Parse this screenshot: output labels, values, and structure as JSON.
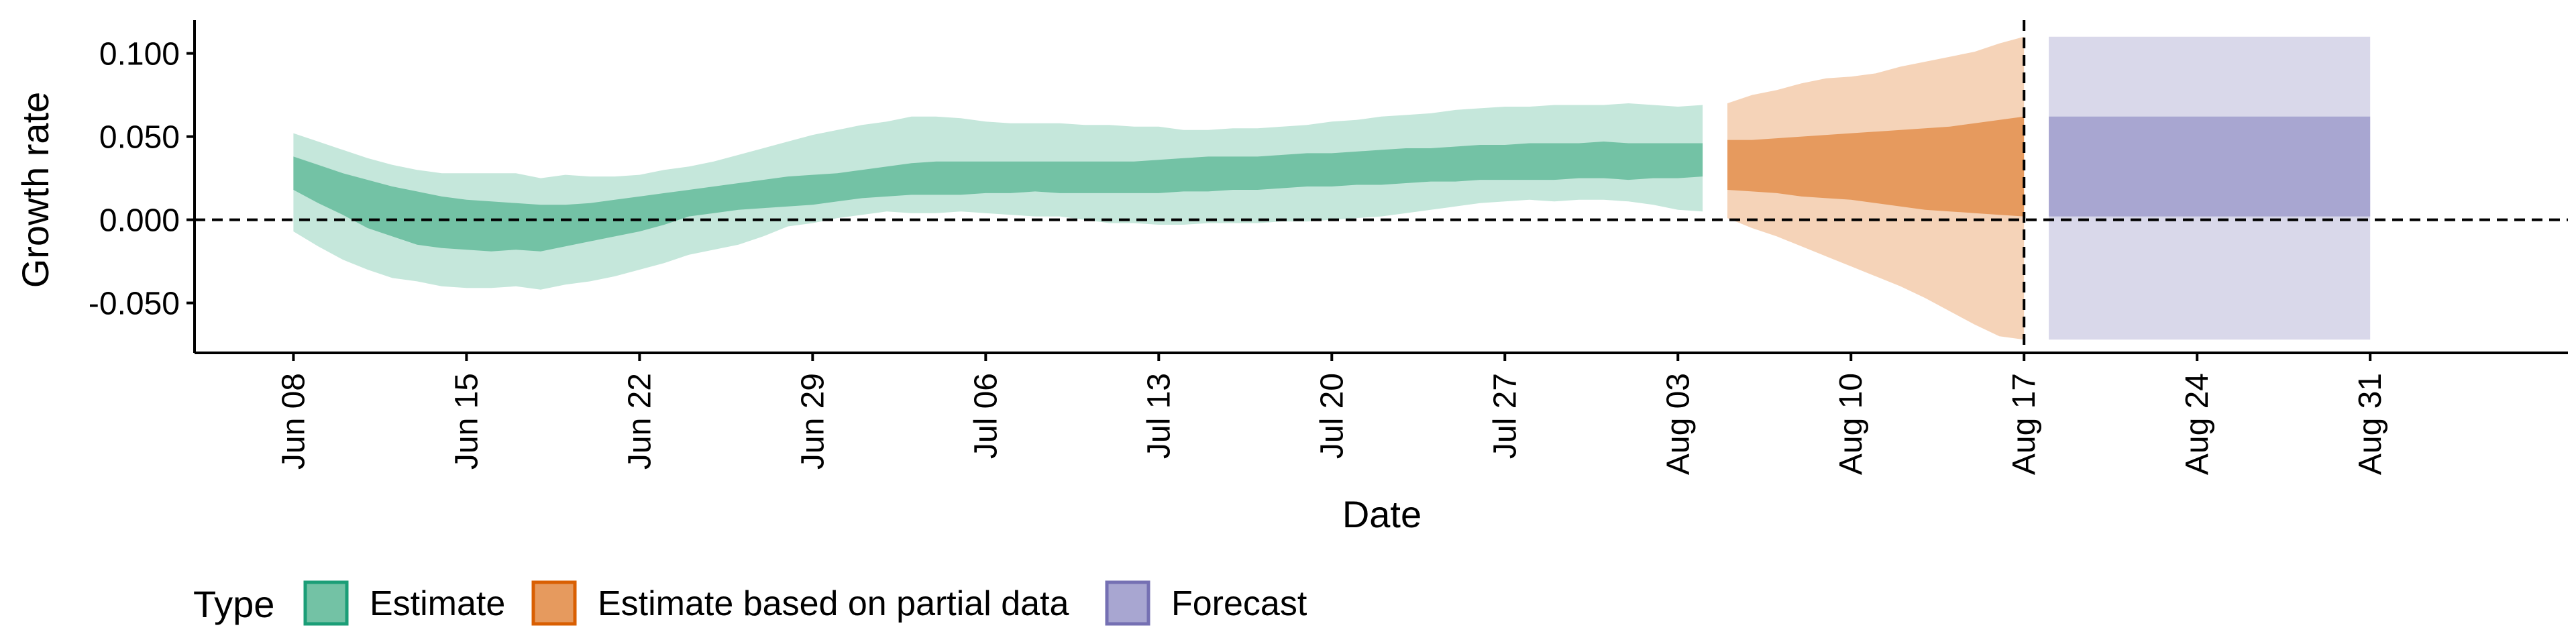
{
  "chart_data": {
    "type": "area",
    "xlabel": "Date",
    "ylabel": "Growth rate",
    "x_ticks": [
      "Jun 08",
      "Jun 15",
      "Jun 22",
      "Jun 29",
      "Jul 06",
      "Jul 13",
      "Jul 20",
      "Jul 27",
      "Aug 03",
      "Aug 10",
      "Aug 17",
      "Aug 24",
      "Aug 31"
    ],
    "y_ticks": [
      "-0.050",
      "0.000",
      "0.050",
      "0.100"
    ],
    "xlim": [
      "2020-06-04",
      "2020-09-08"
    ],
    "ylim": [
      -0.08,
      0.12
    ],
    "hline_y": 0,
    "vline_x": "2020-08-17",
    "grid": false,
    "legend": {
      "title": "Type",
      "position": "bottom-left",
      "entries": [
        {
          "label": "Estimate",
          "fill": "#73c2a5",
          "border": "#1b9e77"
        },
        {
          "label": "Estimate based on partial data",
          "fill": "#e69a5e",
          "border": "#d95f02"
        },
        {
          "label": "Forecast",
          "fill": "#a8a6d1",
          "border": "#7570b3"
        }
      ]
    },
    "series": [
      {
        "name": "Estimate",
        "x": [
          "2020-06-08",
          "2020-06-09",
          "2020-06-10",
          "2020-06-11",
          "2020-06-12",
          "2020-06-13",
          "2020-06-14",
          "2020-06-15",
          "2020-06-16",
          "2020-06-17",
          "2020-06-18",
          "2020-06-19",
          "2020-06-20",
          "2020-06-21",
          "2020-06-22",
          "2020-06-23",
          "2020-06-24",
          "2020-06-25",
          "2020-06-26",
          "2020-06-27",
          "2020-06-28",
          "2020-06-29",
          "2020-06-30",
          "2020-07-01",
          "2020-07-02",
          "2020-07-03",
          "2020-07-04",
          "2020-07-05",
          "2020-07-06",
          "2020-07-07",
          "2020-07-08",
          "2020-07-09",
          "2020-07-10",
          "2020-07-11",
          "2020-07-12",
          "2020-07-13",
          "2020-07-14",
          "2020-07-15",
          "2020-07-16",
          "2020-07-17",
          "2020-07-18",
          "2020-07-19",
          "2020-07-20",
          "2020-07-21",
          "2020-07-22",
          "2020-07-23",
          "2020-07-24",
          "2020-07-25",
          "2020-07-26",
          "2020-07-27",
          "2020-07-28",
          "2020-07-29",
          "2020-07-30",
          "2020-07-31",
          "2020-08-01",
          "2020-08-02",
          "2020-08-03",
          "2020-08-04"
        ],
        "outer_lower": [
          -0.007,
          -0.016,
          -0.024,
          -0.03,
          -0.035,
          -0.037,
          -0.04,
          -0.041,
          -0.041,
          -0.04,
          -0.042,
          -0.039,
          -0.037,
          -0.034,
          -0.03,
          -0.026,
          -0.021,
          -0.018,
          -0.015,
          -0.01,
          -0.004,
          -0.002,
          0.001,
          0.003,
          0.005,
          0.004,
          0.004,
          0.005,
          0.004,
          0.003,
          0.002,
          0.002,
          0.0,
          -0.002,
          -0.002,
          -0.003,
          -0.003,
          -0.002,
          -0.002,
          -0.002,
          -0.001,
          -0.001,
          0.0,
          0.001,
          0.002,
          0.004,
          0.006,
          0.008,
          0.01,
          0.011,
          0.012,
          0.011,
          0.012,
          0.012,
          0.011,
          0.009,
          0.006,
          0.005
        ],
        "outer_upper": [
          0.052,
          0.047,
          0.042,
          0.037,
          0.033,
          0.03,
          0.028,
          0.028,
          0.028,
          0.028,
          0.025,
          0.027,
          0.026,
          0.026,
          0.027,
          0.03,
          0.032,
          0.035,
          0.039,
          0.043,
          0.047,
          0.051,
          0.054,
          0.057,
          0.059,
          0.062,
          0.062,
          0.061,
          0.059,
          0.058,
          0.058,
          0.058,
          0.057,
          0.057,
          0.056,
          0.056,
          0.054,
          0.054,
          0.055,
          0.055,
          0.056,
          0.057,
          0.059,
          0.06,
          0.062,
          0.063,
          0.064,
          0.066,
          0.067,
          0.068,
          0.068,
          0.069,
          0.069,
          0.069,
          0.07,
          0.069,
          0.068,
          0.069
        ],
        "inner_lower": [
          0.018,
          0.01,
          0.003,
          -0.005,
          -0.01,
          -0.015,
          -0.017,
          -0.018,
          -0.019,
          -0.018,
          -0.019,
          -0.016,
          -0.013,
          -0.01,
          -0.007,
          -0.003,
          0.002,
          0.004,
          0.006,
          0.007,
          0.008,
          0.009,
          0.011,
          0.013,
          0.014,
          0.015,
          0.015,
          0.015,
          0.016,
          0.016,
          0.017,
          0.016,
          0.016,
          0.016,
          0.016,
          0.016,
          0.017,
          0.017,
          0.018,
          0.018,
          0.019,
          0.02,
          0.02,
          0.021,
          0.021,
          0.022,
          0.023,
          0.023,
          0.024,
          0.024,
          0.024,
          0.024,
          0.025,
          0.025,
          0.024,
          0.025,
          0.025,
          0.026
        ],
        "inner_upper": [
          0.038,
          0.033,
          0.028,
          0.024,
          0.02,
          0.017,
          0.014,
          0.012,
          0.011,
          0.01,
          0.009,
          0.009,
          0.01,
          0.012,
          0.014,
          0.016,
          0.018,
          0.02,
          0.022,
          0.024,
          0.026,
          0.027,
          0.028,
          0.03,
          0.032,
          0.034,
          0.035,
          0.035,
          0.035,
          0.035,
          0.035,
          0.035,
          0.035,
          0.035,
          0.035,
          0.036,
          0.037,
          0.038,
          0.038,
          0.038,
          0.039,
          0.04,
          0.04,
          0.041,
          0.042,
          0.043,
          0.043,
          0.044,
          0.045,
          0.045,
          0.046,
          0.046,
          0.046,
          0.047,
          0.046,
          0.046,
          0.046,
          0.046
        ]
      },
      {
        "name": "Estimate based on partial data",
        "x": [
          "2020-08-05",
          "2020-08-06",
          "2020-08-07",
          "2020-08-08",
          "2020-08-09",
          "2020-08-10",
          "2020-08-11",
          "2020-08-12",
          "2020-08-13",
          "2020-08-14",
          "2020-08-15",
          "2020-08-16",
          "2020-08-17"
        ],
        "outer_lower": [
          0.001,
          -0.005,
          -0.01,
          -0.016,
          -0.022,
          -0.028,
          -0.034,
          -0.04,
          -0.047,
          -0.055,
          -0.063,
          -0.07,
          -0.072
        ],
        "outer_upper": [
          0.07,
          0.075,
          0.078,
          0.082,
          0.085,
          0.086,
          0.088,
          0.092,
          0.095,
          0.098,
          0.101,
          0.106,
          0.11
        ],
        "inner_lower": [
          0.018,
          0.017,
          0.016,
          0.014,
          0.013,
          0.012,
          0.01,
          0.008,
          0.006,
          0.005,
          0.004,
          0.003,
          0.002
        ],
        "inner_upper": [
          0.048,
          0.048,
          0.049,
          0.05,
          0.051,
          0.052,
          0.053,
          0.054,
          0.055,
          0.056,
          0.058,
          0.06,
          0.062
        ]
      },
      {
        "name": "Forecast",
        "x": [
          "2020-08-18",
          "2020-08-31"
        ],
        "outer_lower": [
          -0.072,
          -0.072
        ],
        "outer_upper": [
          0.11,
          0.11
        ],
        "inner_lower": [
          0.002,
          0.002
        ],
        "inner_upper": [
          0.062,
          0.062
        ]
      }
    ],
    "colors": {
      "Estimate": {
        "outer": "#c5e7db",
        "inner": "#73c2a5"
      },
      "Estimate based on partial data": {
        "outer": "#f5d3b8",
        "inner": "#e69a5e"
      },
      "Forecast": {
        "outer": "#d9d8ea",
        "inner": "#a8a6d1"
      }
    }
  }
}
